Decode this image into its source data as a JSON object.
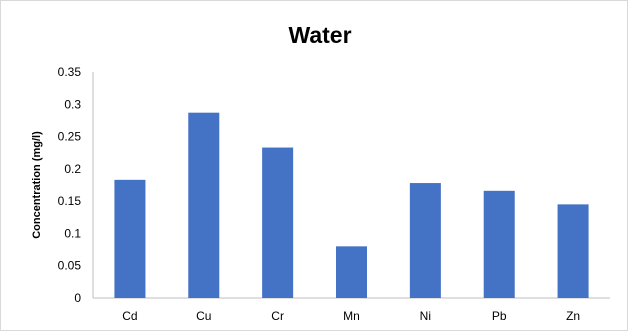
{
  "chart_data": {
    "type": "bar",
    "title": "Water",
    "xlabel": "",
    "ylabel": "Concentration (mg/l)",
    "categories": [
      "Cd",
      "Cu",
      "Cr",
      "Mn",
      "Ni",
      "Pb",
      "Zn"
    ],
    "values": [
      0.183,
      0.287,
      0.233,
      0.08,
      0.178,
      0.166,
      0.145
    ],
    "ylim": [
      0,
      0.35
    ],
    "yticks": [
      "0",
      "0.05",
      "0.1",
      "0.15",
      "0.2",
      "0.25",
      "0.3",
      "0.35"
    ],
    "grid": false,
    "legend": "none",
    "bar_color": "#4472C4"
  }
}
